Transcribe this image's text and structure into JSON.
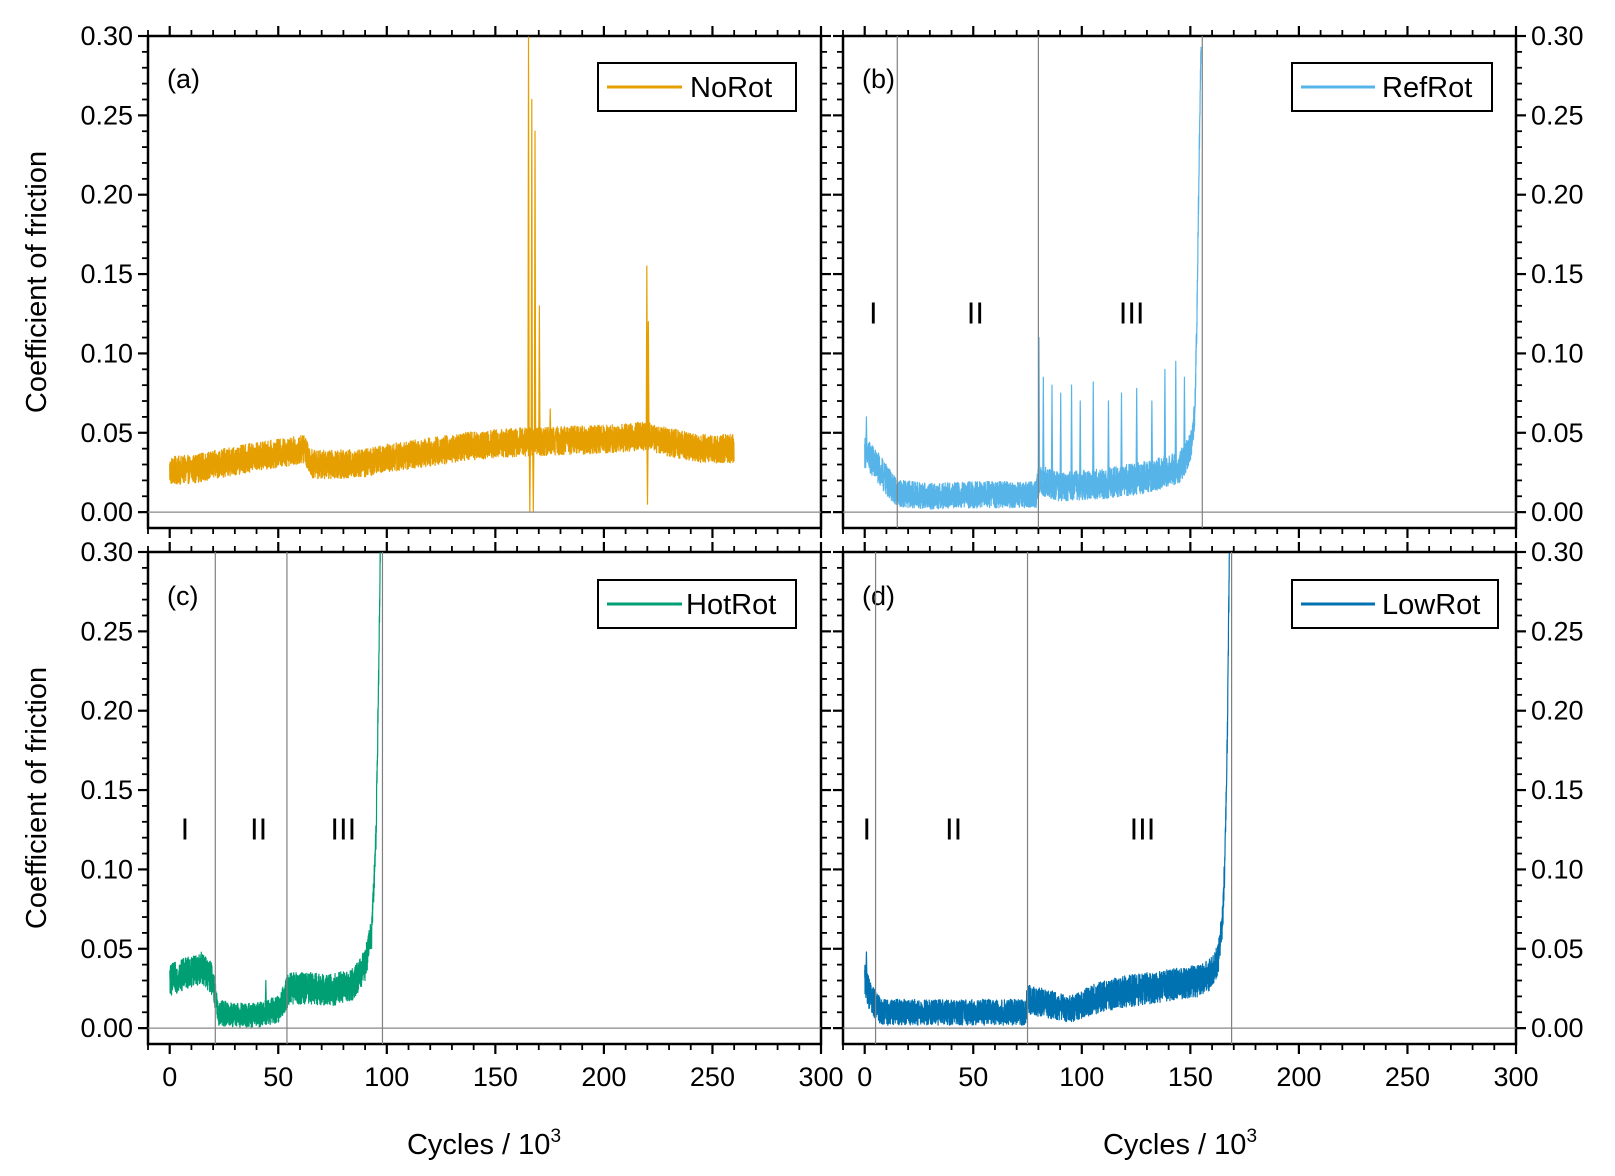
{
  "chart_data": [
    {
      "type": "line",
      "panel_label": "(a)",
      "legend": "NoRot",
      "color": "#E69F00",
      "xlabel": "Cycles / 10",
      "xlabel_sup": "3",
      "ylabel": "Coefficient of friction",
      "xlim": [
        -10,
        300
      ],
      "ylim": [
        -0.01,
        0.3
      ],
      "x_ticks": [
        "0",
        "50",
        "100",
        "150",
        "200",
        "250",
        "300"
      ],
      "y_ticks": [
        "0.00",
        "0.05",
        "0.10",
        "0.15",
        "0.20",
        "0.25",
        "0.30"
      ],
      "x_end": 260,
      "baseline": [
        [
          0,
          0.026
        ],
        [
          10,
          0.027
        ],
        [
          25,
          0.031
        ],
        [
          40,
          0.035
        ],
        [
          55,
          0.038
        ],
        [
          62,
          0.04
        ],
        [
          66,
          0.03
        ],
        [
          75,
          0.03
        ],
        [
          90,
          0.031
        ],
        [
          100,
          0.034
        ],
        [
          120,
          0.038
        ],
        [
          140,
          0.042
        ],
        [
          160,
          0.044
        ],
        [
          180,
          0.045
        ],
        [
          200,
          0.046
        ],
        [
          220,
          0.048
        ],
        [
          230,
          0.044
        ],
        [
          245,
          0.04
        ],
        [
          260,
          0.04
        ]
      ],
      "noise": 0.009,
      "spikes": [
        [
          165,
          0.3
        ],
        [
          165.6,
          0.0
        ],
        [
          166.5,
          0.26
        ],
        [
          167.2,
          0.0
        ],
        [
          168,
          0.24
        ],
        [
          170,
          0.13
        ],
        [
          175,
          0.065
        ],
        [
          219.5,
          0.155
        ],
        [
          219.8,
          0.005
        ],
        [
          220.2,
          0.12
        ]
      ],
      "stages": [],
      "stage_lines": []
    },
    {
      "type": "line",
      "panel_label": "(b)",
      "legend": "RefRot",
      "color": "#56B4E9",
      "xlabel": "Cycles / 10",
      "xlabel_sup": "3",
      "ylabel": "Coefficient of friction",
      "xlim": [
        -10,
        300
      ],
      "ylim": [
        -0.01,
        0.3
      ],
      "x_ticks": [
        "0",
        "50",
        "100",
        "150",
        "200",
        "250",
        "300"
      ],
      "y_ticks": [
        "0.00",
        "0.05",
        "0.10",
        "0.15",
        "0.20",
        "0.25",
        "0.30"
      ],
      "x_end": 155,
      "baseline": [
        [
          0,
          0.038
        ],
        [
          5,
          0.03
        ],
        [
          10,
          0.02
        ],
        [
          15,
          0.012
        ],
        [
          30,
          0.01
        ],
        [
          50,
          0.011
        ],
        [
          70,
          0.011
        ],
        [
          79,
          0.011
        ],
        [
          80,
          0.02
        ],
        [
          90,
          0.016
        ],
        [
          110,
          0.018
        ],
        [
          130,
          0.022
        ],
        [
          145,
          0.028
        ],
        [
          150,
          0.04
        ],
        [
          152,
          0.06
        ],
        [
          153,
          0.12
        ],
        [
          154,
          0.22
        ],
        [
          155,
          0.3
        ]
      ],
      "noise": 0.01,
      "spikes": [
        [
          0.5,
          0.06
        ],
        [
          80,
          0.11
        ],
        [
          82,
          0.085
        ],
        [
          86,
          0.08
        ],
        [
          90,
          0.075
        ],
        [
          95,
          0.08
        ],
        [
          99,
          0.07
        ],
        [
          105,
          0.082
        ],
        [
          112,
          0.07
        ],
        [
          118,
          0.075
        ],
        [
          125,
          0.078
        ],
        [
          132,
          0.07
        ],
        [
          138,
          0.09
        ],
        [
          143,
          0.095
        ],
        [
          147,
          0.085
        ]
      ],
      "stages": [
        {
          "label": "I",
          "x": 2
        },
        {
          "label": "II",
          "x": 47
        },
        {
          "label": "III",
          "x": 117
        }
      ],
      "stage_lines": [
        15,
        80,
        155.5
      ]
    },
    {
      "type": "line",
      "panel_label": "(c)",
      "legend": "HotRot",
      "color": "#009E73",
      "xlabel": "Cycles / 10",
      "xlabel_sup": "3",
      "ylabel": "Coefficient of friction",
      "xlim": [
        -10,
        300
      ],
      "ylim": [
        -0.01,
        0.3
      ],
      "x_ticks": [
        "0",
        "50",
        "100",
        "150",
        "200",
        "250",
        "300"
      ],
      "y_ticks": [
        "0.00",
        "0.05",
        "0.10",
        "0.15",
        "0.20",
        "0.25",
        "0.30"
      ],
      "x_end": 97,
      "baseline": [
        [
          0,
          0.03
        ],
        [
          8,
          0.035
        ],
        [
          15,
          0.038
        ],
        [
          20,
          0.03
        ],
        [
          22,
          0.01
        ],
        [
          30,
          0.008
        ],
        [
          40,
          0.008
        ],
        [
          45,
          0.01
        ],
        [
          50,
          0.012
        ],
        [
          55,
          0.025
        ],
        [
          65,
          0.025
        ],
        [
          75,
          0.024
        ],
        [
          85,
          0.028
        ],
        [
          90,
          0.04
        ],
        [
          93,
          0.06
        ],
        [
          95,
          0.12
        ],
        [
          96,
          0.2
        ],
        [
          97,
          0.3
        ]
      ],
      "noise": 0.01,
      "spikes": [
        [
          44,
          0.03
        ]
      ],
      "stages": [
        {
          "label": "I",
          "x": 5
        },
        {
          "label": "II",
          "x": 37
        },
        {
          "label": "III",
          "x": 74
        }
      ],
      "stage_lines": [
        21,
        54,
        98
      ]
    },
    {
      "type": "line",
      "panel_label": "(d)",
      "legend": "LowRot",
      "color": "#0072B2",
      "xlabel": "Cycles / 10",
      "xlabel_sup": "3",
      "ylabel": "Coefficient of friction",
      "xlim": [
        -10,
        300
      ],
      "ylim": [
        -0.01,
        0.3
      ],
      "x_ticks": [
        "0",
        "50",
        "100",
        "150",
        "200",
        "250",
        "300"
      ],
      "y_ticks": [
        "0.00",
        "0.05",
        "0.10",
        "0.15",
        "0.20",
        "0.25",
        "0.30"
      ],
      "x_end": 168,
      "baseline": [
        [
          0,
          0.03
        ],
        [
          3,
          0.018
        ],
        [
          8,
          0.01
        ],
        [
          20,
          0.01
        ],
        [
          40,
          0.01
        ],
        [
          60,
          0.01
        ],
        [
          74,
          0.01
        ],
        [
          75,
          0.018
        ],
        [
          85,
          0.015
        ],
        [
          95,
          0.012
        ],
        [
          105,
          0.018
        ],
        [
          115,
          0.022
        ],
        [
          130,
          0.025
        ],
        [
          145,
          0.028
        ],
        [
          155,
          0.03
        ],
        [
          160,
          0.035
        ],
        [
          163,
          0.045
        ],
        [
          165,
          0.07
        ],
        [
          166,
          0.11
        ],
        [
          167,
          0.18
        ],
        [
          168,
          0.3
        ]
      ],
      "noise": 0.01,
      "spikes": [
        [
          0.5,
          0.048
        ]
      ],
      "stages": [
        {
          "label": "I",
          "x": -1
        },
        {
          "label": "II",
          "x": 37
        },
        {
          "label": "III",
          "x": 122
        }
      ],
      "stage_lines": [
        5,
        75,
        169
      ]
    }
  ]
}
